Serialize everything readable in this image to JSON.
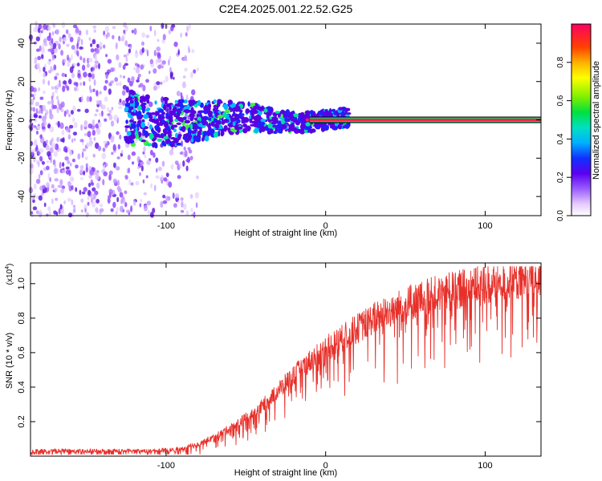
{
  "title": "C2E4.2025.001.22.52.G25",
  "colorbar": {
    "label": "Normalized spectral amplitude",
    "ticks": [
      "0.0",
      "0.2",
      "0.4",
      "0.6",
      "0.8"
    ],
    "range": [
      0,
      1
    ]
  },
  "chart_data": [
    {
      "type": "heatmap",
      "xlabel": "Height of straight line (km)",
      "ylabel": "Frequency (Hz)",
      "xlim": [
        -185,
        135
      ],
      "ylim": [
        -50,
        50
      ],
      "xticks": [
        -100,
        0,
        100
      ],
      "yticks": [
        -40,
        -20,
        0,
        20,
        40
      ],
      "description_values": {
        "noise_region_x": [
          -185,
          -90
        ],
        "signal_band_x": [
          -125,
          15
        ],
        "carrier_line_x": [
          -10,
          135
        ],
        "carrier_frequency": 0
      }
    },
    {
      "type": "line",
      "xlabel": "Height of straight line (km)",
      "ylabel": "SNR (10 * v/v)",
      "yscale_label": "(x10",
      "yscale_exp": "4",
      "yscale_close": ")",
      "xlim": [
        -185,
        135
      ],
      "ylim": [
        0,
        1.12
      ],
      "xticks": [
        -100,
        0,
        100
      ],
      "yticks": [
        0.2,
        0.4,
        0.6,
        0.8,
        1.0
      ],
      "color": "#e8302a",
      "series": [
        {
          "x": [
            -185,
            -150,
            -110,
            -90,
            -80,
            -70,
            -60,
            -50,
            -40,
            -30,
            -20,
            -10,
            0,
            10,
            20,
            30,
            40,
            50,
            60,
            70,
            80,
            90,
            100,
            110,
            120,
            135
          ],
          "values": [
            0.03,
            0.03,
            0.03,
            0.04,
            0.07,
            0.11,
            0.16,
            0.22,
            0.29,
            0.38,
            0.47,
            0.55,
            0.62,
            0.68,
            0.74,
            0.8,
            0.84,
            0.88,
            0.91,
            0.94,
            0.96,
            0.98,
            1.0,
            1.01,
            1.02,
            1.02
          ]
        }
      ]
    }
  ]
}
